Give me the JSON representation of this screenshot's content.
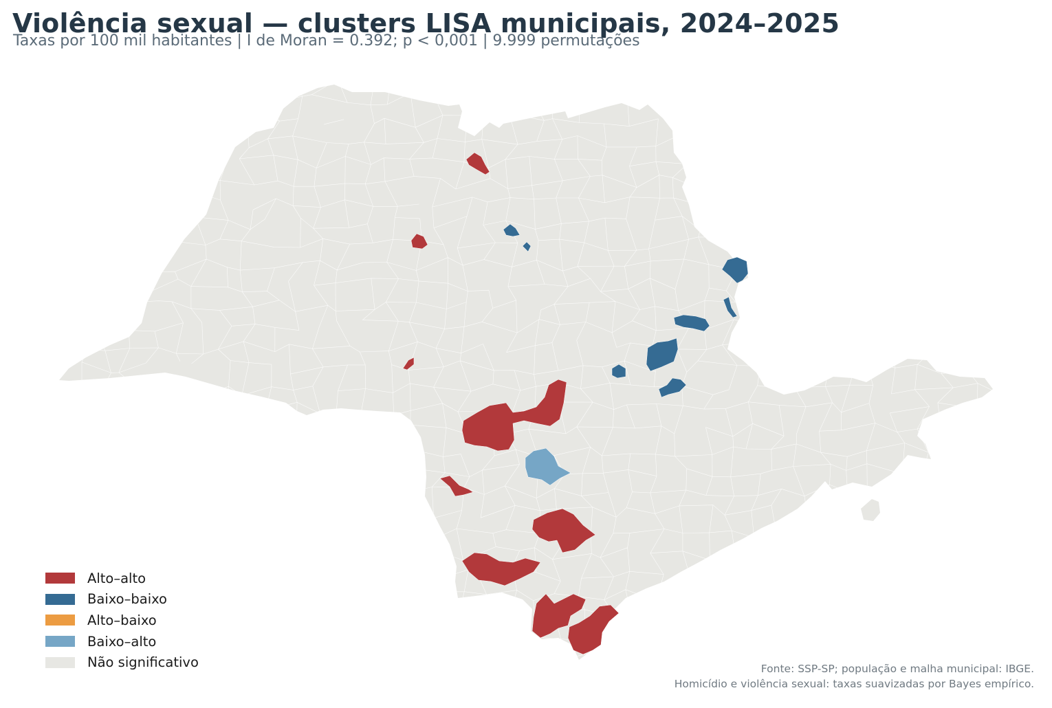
{
  "title": "Violência sexual — clusters LISA municipais, 2024–2025",
  "subtitle": "Taxas por 100 mil habitantes | I de Moran = 0.392; p < 0,001 | 9.999 permutações",
  "legend": [
    {
      "label": "Alto–alto",
      "color": "#b2393b"
    },
    {
      "label": "Baixo–baixo",
      "color": "#356b93"
    },
    {
      "label": "Alto–baixo",
      "color": "#ec9c42"
    },
    {
      "label": "Baixo–alto",
      "color": "#76a6c6"
    },
    {
      "label": "Não significativo",
      "color": "#e7e7e3"
    }
  ],
  "footer": {
    "line1": "Fonte: SSP-SP; população e malha municipal: IBGE.",
    "line2": "Homicídio e violência sexual: taxas suavizadas por Bayes empírico."
  },
  "colors": {
    "base": "#e7e7e3",
    "border": "#ffffff"
  }
}
